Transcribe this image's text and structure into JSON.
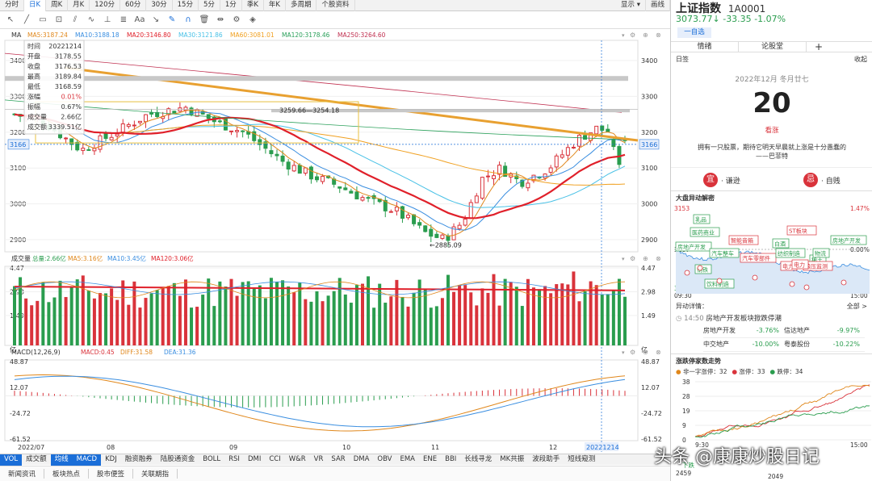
{
  "topbar": {
    "tabs": [
      "分时",
      "日K",
      "周K",
      "月K",
      "120分",
      "60分",
      "30分",
      "15分",
      "5分",
      "1分",
      "季K",
      "年K",
      "多周期",
      "个股资料"
    ],
    "active": "日K",
    "right": [
      "显示",
      "画线"
    ]
  },
  "legend_ma": {
    "label": "MA",
    "items": [
      {
        "text": "MA5:3187.24",
        "color": "#e0871b"
      },
      {
        "text": "MA10:3188.18",
        "color": "#3a8ee0"
      },
      {
        "text": "MA20:3146.80",
        "color": "#e0202a"
      },
      {
        "text": "MA30:3121.86",
        "color": "#49c1e6"
      },
      {
        "text": "MA60:3081.01",
        "color": "#f0a020"
      },
      {
        "text": "MA120:3178.46",
        "color": "#2aa05a"
      },
      {
        "text": "MA250:3264.60",
        "color": "#c03050"
      }
    ]
  },
  "legend_vol": {
    "label": "成交量",
    "items": [
      {
        "text": "总量:2.66亿",
        "color": "#2a9d4e"
      },
      {
        "text": "MA5:3.16亿",
        "color": "#e0871b"
      },
      {
        "text": "MA10:3.45亿",
        "color": "#3a8ee0"
      },
      {
        "text": "MA120:3.06亿",
        "color": "#e0202a"
      }
    ]
  },
  "legend_macd": {
    "label": "MACD(12,26,9)",
    "items": [
      {
        "text": "MACD:0.45",
        "color": "#d9333b"
      },
      {
        "text": "DIFF:31.58",
        "color": "#e0871b"
      },
      {
        "text": "DEA:31.36",
        "color": "#3a8ee0"
      }
    ]
  },
  "infobox": {
    "rows": [
      [
        "时间",
        "20221214"
      ],
      [
        "开盘",
        "3178.55"
      ],
      [
        "收盘",
        "3176.53"
      ],
      [
        "最高",
        "3189.84"
      ],
      [
        "最低",
        "3168.59"
      ],
      [
        "涨幅",
        "0.01%"
      ],
      [
        "振幅",
        "0.67%"
      ],
      [
        "成交量",
        "2.66亿"
      ],
      [
        "成交额",
        "3339.51亿"
      ]
    ]
  },
  "price_axis": [
    "3400",
    "3300",
    "3200",
    "3100",
    "3000",
    "2900"
  ],
  "price_crosshair": "3166",
  "vol_axis": [
    "4.47",
    "2.98",
    "1.49",
    "亿"
  ],
  "macd_axis": [
    "48.87",
    "12.07",
    "-24.72",
    "-61.52"
  ],
  "annotations": {
    "range": "3259.66—3254.18",
    "low": "←2885.09"
  },
  "dates": [
    "2022/07",
    "08",
    "09",
    "10",
    "11",
    "12",
    "20221214"
  ],
  "bottom_tabs": [
    "VOL",
    "成交额",
    "均线",
    "MACD",
    "KDJ",
    "融资融券",
    "陆股通资金",
    "BOLL",
    "RSI",
    "DMI",
    "CCI",
    "W&R",
    "VR",
    "SAR",
    "DMA",
    "OBV",
    "EMA",
    "ENE",
    "BBI",
    "长线寻龙",
    "MK共振",
    "波段助手",
    "短线窥测"
  ],
  "bottom_active": [
    "VOL",
    "均线",
    "MACD"
  ],
  "bottom_right": "筹",
  "news_tabs": [
    "新闻资讯",
    "板块热点",
    "股市便签",
    "关联期指"
  ],
  "right": {
    "title": "上证指数",
    "code": "1A0001",
    "price": "3073.77↓",
    "change": "-33.35",
    "pct": "-1.07%",
    "watch_btn": "一自选",
    "tabs": [
      "情绪",
      "论股堂",
      "+"
    ],
    "cal_label": "日签",
    "cal_collapse": "收起",
    "date": "2022年12月 冬月廿七",
    "day": "20",
    "day_tag": "看涨",
    "quote": "拥有一只股票，期待它明天早晨就上涨是十分愚蠢的——巴菲特",
    "yi": "宜",
    "yi_text": "· 谦逊",
    "ji": "忌",
    "ji_text": "· 自贱",
    "anomaly_title": "大盘异动解密",
    "anomaly_hi": "3153",
    "anomaly_hi_pct": "1.47%",
    "anomaly_mid": "3107",
    "anomaly_mid_pct": "0.00%",
    "anomaly_lo": "3062",
    "anomaly_lo_pct": "-1.47%",
    "anomaly_t0": "09:30",
    "anomaly_t1": "15:00",
    "tags": [
      "乳品",
      "医药商业",
      "房地产开发",
      "汽车整车",
      "智能音箱",
      "汽车零部件",
      "白酒",
      "纺织制造",
      "ST板块",
      "电力",
      "稀土",
      "物流",
      "钢铁",
      "饮料制造",
      "房地产开发",
      "酿压监测",
      "电力"
    ],
    "detail_title": "异动详情：",
    "detail_all": "全部 >",
    "detail_time": "14:50",
    "detail_text": "房地产开发板块掀跌停潮",
    "detail_rows": [
      [
        "房地产开发",
        "-3.76%",
        "信达地产",
        "-9.97%"
      ],
      [
        "中交地产",
        "-10.00%",
        "粤泰股份",
        "-10.22%"
      ]
    ],
    "limit_title": "涨跌停家数走势",
    "limit_legend": [
      {
        "text": "非一字涨停：32",
        "color": "#e0871b"
      },
      {
        "text": "涨停：33",
        "color": "#d9333b"
      },
      {
        "text": "跌停：34",
        "color": "#2a9d4e"
      }
    ],
    "limit_axis": [
      "38",
      "28",
      "19",
      "9",
      "0"
    ],
    "limit_t0": "9:30",
    "limit_t1": "15:00",
    "limit_bottom": [
      "下跌",
      "2459",
      "2049"
    ]
  },
  "watermark": "头条 @康康炒股日记"
}
